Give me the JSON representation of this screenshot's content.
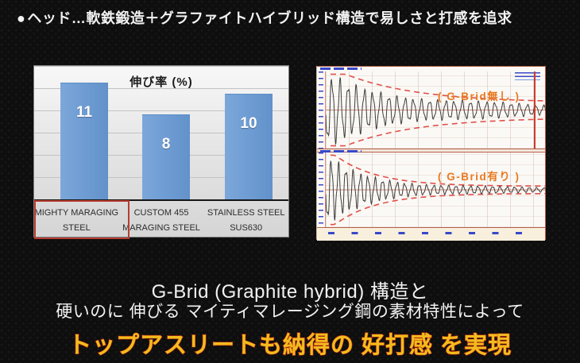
{
  "header": {
    "bullet": "●",
    "title": "ヘッド…軟鉄鍛造＋グラファイトハイブリッド構造で易しさと打感を追求"
  },
  "caption": {
    "line1": "G-Brid (Graphite hybrid) 構造と",
    "line2": "硬いのに 伸びる マイティマレージング鋼の素材特性によって",
    "highlight": "トップアスリートも納得の 好打感 を実現"
  },
  "colors": {
    "background": "#0e0e0e",
    "headline_text": "#f2f2f2",
    "bar_blue": "#6f9cd4",
    "highlight_box_red": "#b63c30",
    "envelope_red": "#e0504a",
    "waveform_gray": "#3c3c3c",
    "orange_label": "#e8791f",
    "accent_yellow": "#f0bd1d",
    "accent_yellow_outline": "#c42814",
    "axis_tick_blue": "#3848c8"
  },
  "chart_data": [
    {
      "type": "bar",
      "title": "伸び率 (%)",
      "categories": [
        "MIGHTY MARAGING STEEL",
        "CUSTOM 455 MARAGING STEEL",
        "STAINLESS STEEL SUS630"
      ],
      "categories_lines": [
        [
          "MIGHTY MARAGING",
          "STEEL"
        ],
        [
          "CUSTOM 455",
          "MARAGING STEEL"
        ],
        [
          "STAINLESS STEEL",
          "SUS630"
        ]
      ],
      "values": [
        11,
        8,
        10
      ],
      "value_labels": [
        "11",
        "8",
        "10"
      ],
      "ylim": [
        0,
        12.7
      ],
      "grid": true,
      "legend": false,
      "value_labels_inside_bars": true,
      "highlighted_category_index": 0
    },
    {
      "type": "line",
      "label": "( G-Brid無し )",
      "series": [
        {
          "name": "vibration waveform",
          "style": "damped oscillation, slow decay, residual vibration persists"
        }
      ],
      "annotations": [
        "red dashed exponential decay envelope",
        "red vertical cursor line near right edge"
      ],
      "render_params": {
        "cycles": 27,
        "amp0": 0.93,
        "amp_decay": 3.4,
        "amp_residual": 0.13,
        "env0": 0.95,
        "env_decay": 3.0,
        "env_residual": 0.2
      }
    },
    {
      "type": "line",
      "label": "( G-Brid有り )",
      "series": [
        {
          "name": "vibration waveform",
          "style": "damped oscillation, fast decay, settles quickly"
        }
      ],
      "annotations": [
        "red dashed exponential decay envelope"
      ],
      "render_params": {
        "cycles": 30,
        "amp0": 0.97,
        "amp_decay": 5.0,
        "amp_residual": 0.07,
        "env0": 0.97,
        "env_decay": 5.2,
        "env_residual": 0.1
      }
    }
  ]
}
